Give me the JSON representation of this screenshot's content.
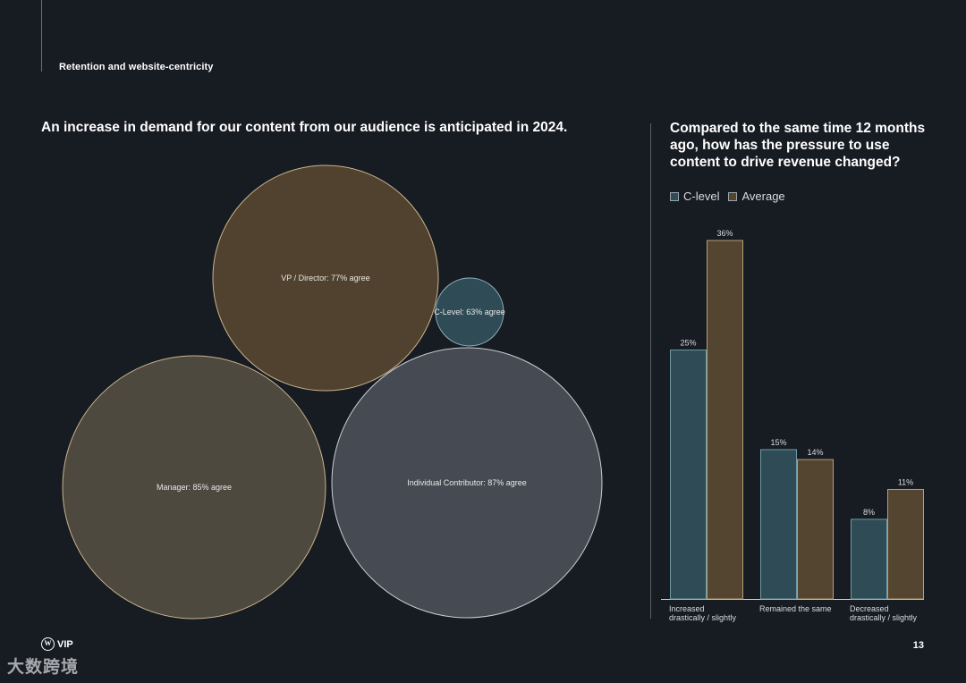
{
  "section_title": "Retention and website-centricity",
  "left_heading": "An increase in demand for our content from our audience is anticipated in 2024.",
  "right_heading": "Compared to the same time 12 months ago, how has the pressure to use content to drive revenue changed?",
  "colors": {
    "background": "#171b22",
    "c_level": "#2f4b55",
    "average": "#53452f",
    "manager": "#4d493f",
    "individual": "#464a53",
    "bubble_stroke": "#c9b48c"
  },
  "legend": [
    {
      "label": "C-level",
      "color": "#2f4b55"
    },
    {
      "label": "Average",
      "color": "#53452f"
    }
  ],
  "chart_data": [
    {
      "type": "bubble",
      "title": "An increase in demand for our content from our audience is anticipated in 2024.",
      "bubbles": [
        {
          "label": "VP / Director: 77% agree",
          "group": "VP / Director",
          "value": 77
        },
        {
          "label": "C-Level: 63% agree",
          "group": "C-Level",
          "value": 63
        },
        {
          "label": "Manager: 85% agree",
          "group": "Manager",
          "value": 85
        },
        {
          "label": "Individual Contributor: 87% agree",
          "group": "Individual Contributor",
          "value": 87
        }
      ]
    },
    {
      "type": "bar",
      "title": "Compared to the same time 12 months ago, how has the pressure to use content to drive revenue changed?",
      "categories": [
        "Increased drastically / slightly",
        "Remained the same",
        "Decreased drastically / slightly"
      ],
      "series": [
        {
          "name": "C-level",
          "values": [
            25,
            15,
            8
          ],
          "labels": [
            "25%",
            "15%",
            "8%"
          ]
        },
        {
          "name": "Average",
          "values": [
            36,
            14,
            11
          ],
          "labels": [
            "36%",
            "14%",
            "11%"
          ]
        }
      ],
      "ylim": [
        0,
        40
      ],
      "legend": "top-left",
      "grid": false
    }
  ],
  "footer": {
    "logo_text": "VIP",
    "logo_mark": "W",
    "page_number": "13"
  },
  "watermark": "大数跨境"
}
